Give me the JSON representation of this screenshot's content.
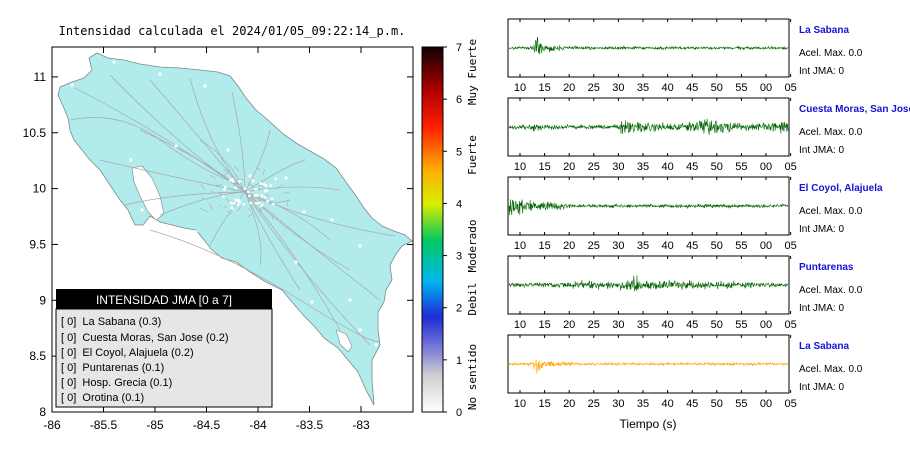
{
  "map": {
    "title": "Intensidad calculada el 2024/01/05_09:22:14_p.m.",
    "x_ticks": [
      "-86",
      "-85.5",
      "-85",
      "-84.5",
      "-84",
      "-83.5",
      "-83"
    ],
    "y_ticks": [
      "11",
      "10.5",
      "10",
      "9.5",
      "9",
      "8.5",
      "8"
    ],
    "land_color": "#b2ebec"
  },
  "colorbar": {
    "ticks": [
      "0",
      "1",
      "2",
      "3",
      "4",
      "5",
      "6",
      "7"
    ],
    "labels": [
      "No sentido",
      "Debil",
      "Moderado",
      "Fuerte",
      "Muy Fuerte"
    ]
  },
  "legend": {
    "title": "INTENSIDAD JMA [0 a 7]",
    "items": [
      "[ 0]  La Sabana (0.3)",
      "[ 0]  Cuesta Moras, San Jose (0.2)",
      "[ 0]  El Coyol, Alajuela (0.2)",
      "[ 0]  Puntarenas (0.1)",
      "[ 0]  Hosp. Grecia (0.1)",
      "[ 0]  Orotina (0.1)"
    ]
  },
  "waveforms": {
    "time_ticks": [
      "10",
      "15",
      "20",
      "25",
      "30",
      "35",
      "40",
      "45",
      "50",
      "55",
      "00",
      "05"
    ],
    "xlabel": "Tiempo (s)",
    "panels": [
      {
        "station": "La Sabana",
        "acel": "Acel. Max. 0.0",
        "jma": "Int JMA: 0",
        "color": "#006400"
      },
      {
        "station": "Cuesta Moras, San Jose",
        "acel": "Acel. Max. 0.0",
        "jma": "Int JMA: 0",
        "color": "#006400"
      },
      {
        "station": "El Coyol, Alajuela",
        "acel": "Acel. Max. 0.0",
        "jma": "Int JMA: 0",
        "color": "#006400"
      },
      {
        "station": "Puntarenas",
        "acel": "Acel. Max. 0.0",
        "jma": "Int JMA: 0",
        "color": "#006400"
      },
      {
        "station": "La Sabana",
        "acel": "Acel. Max. 0.0",
        "jma": "Int JMA: 0",
        "color": "#ffa500"
      }
    ]
  },
  "chart_data": [
    {
      "type": "map",
      "title": "Intensidad calculada el 2024/01/05_09:22:14_p.m.",
      "xlim": [
        -86,
        -82.5
      ],
      "ylim": [
        8,
        11.3
      ],
      "legend_placement": "bottom-left",
      "colorbar_range": [
        0,
        7
      ]
    },
    {
      "type": "line",
      "xlabel": "Tiempo (s)",
      "x_tick_labels": [
        "10",
        "15",
        "20",
        "25",
        "30",
        "35",
        "40",
        "45",
        "50",
        "55",
        "00",
        "05"
      ],
      "series": [
        {
          "name": "La Sabana"
        },
        {
          "name": "Cuesta Moras, San Jose"
        },
        {
          "name": "El Coyol, Alajuela"
        },
        {
          "name": "Puntarenas"
        },
        {
          "name": "La Sabana"
        }
      ]
    }
  ]
}
